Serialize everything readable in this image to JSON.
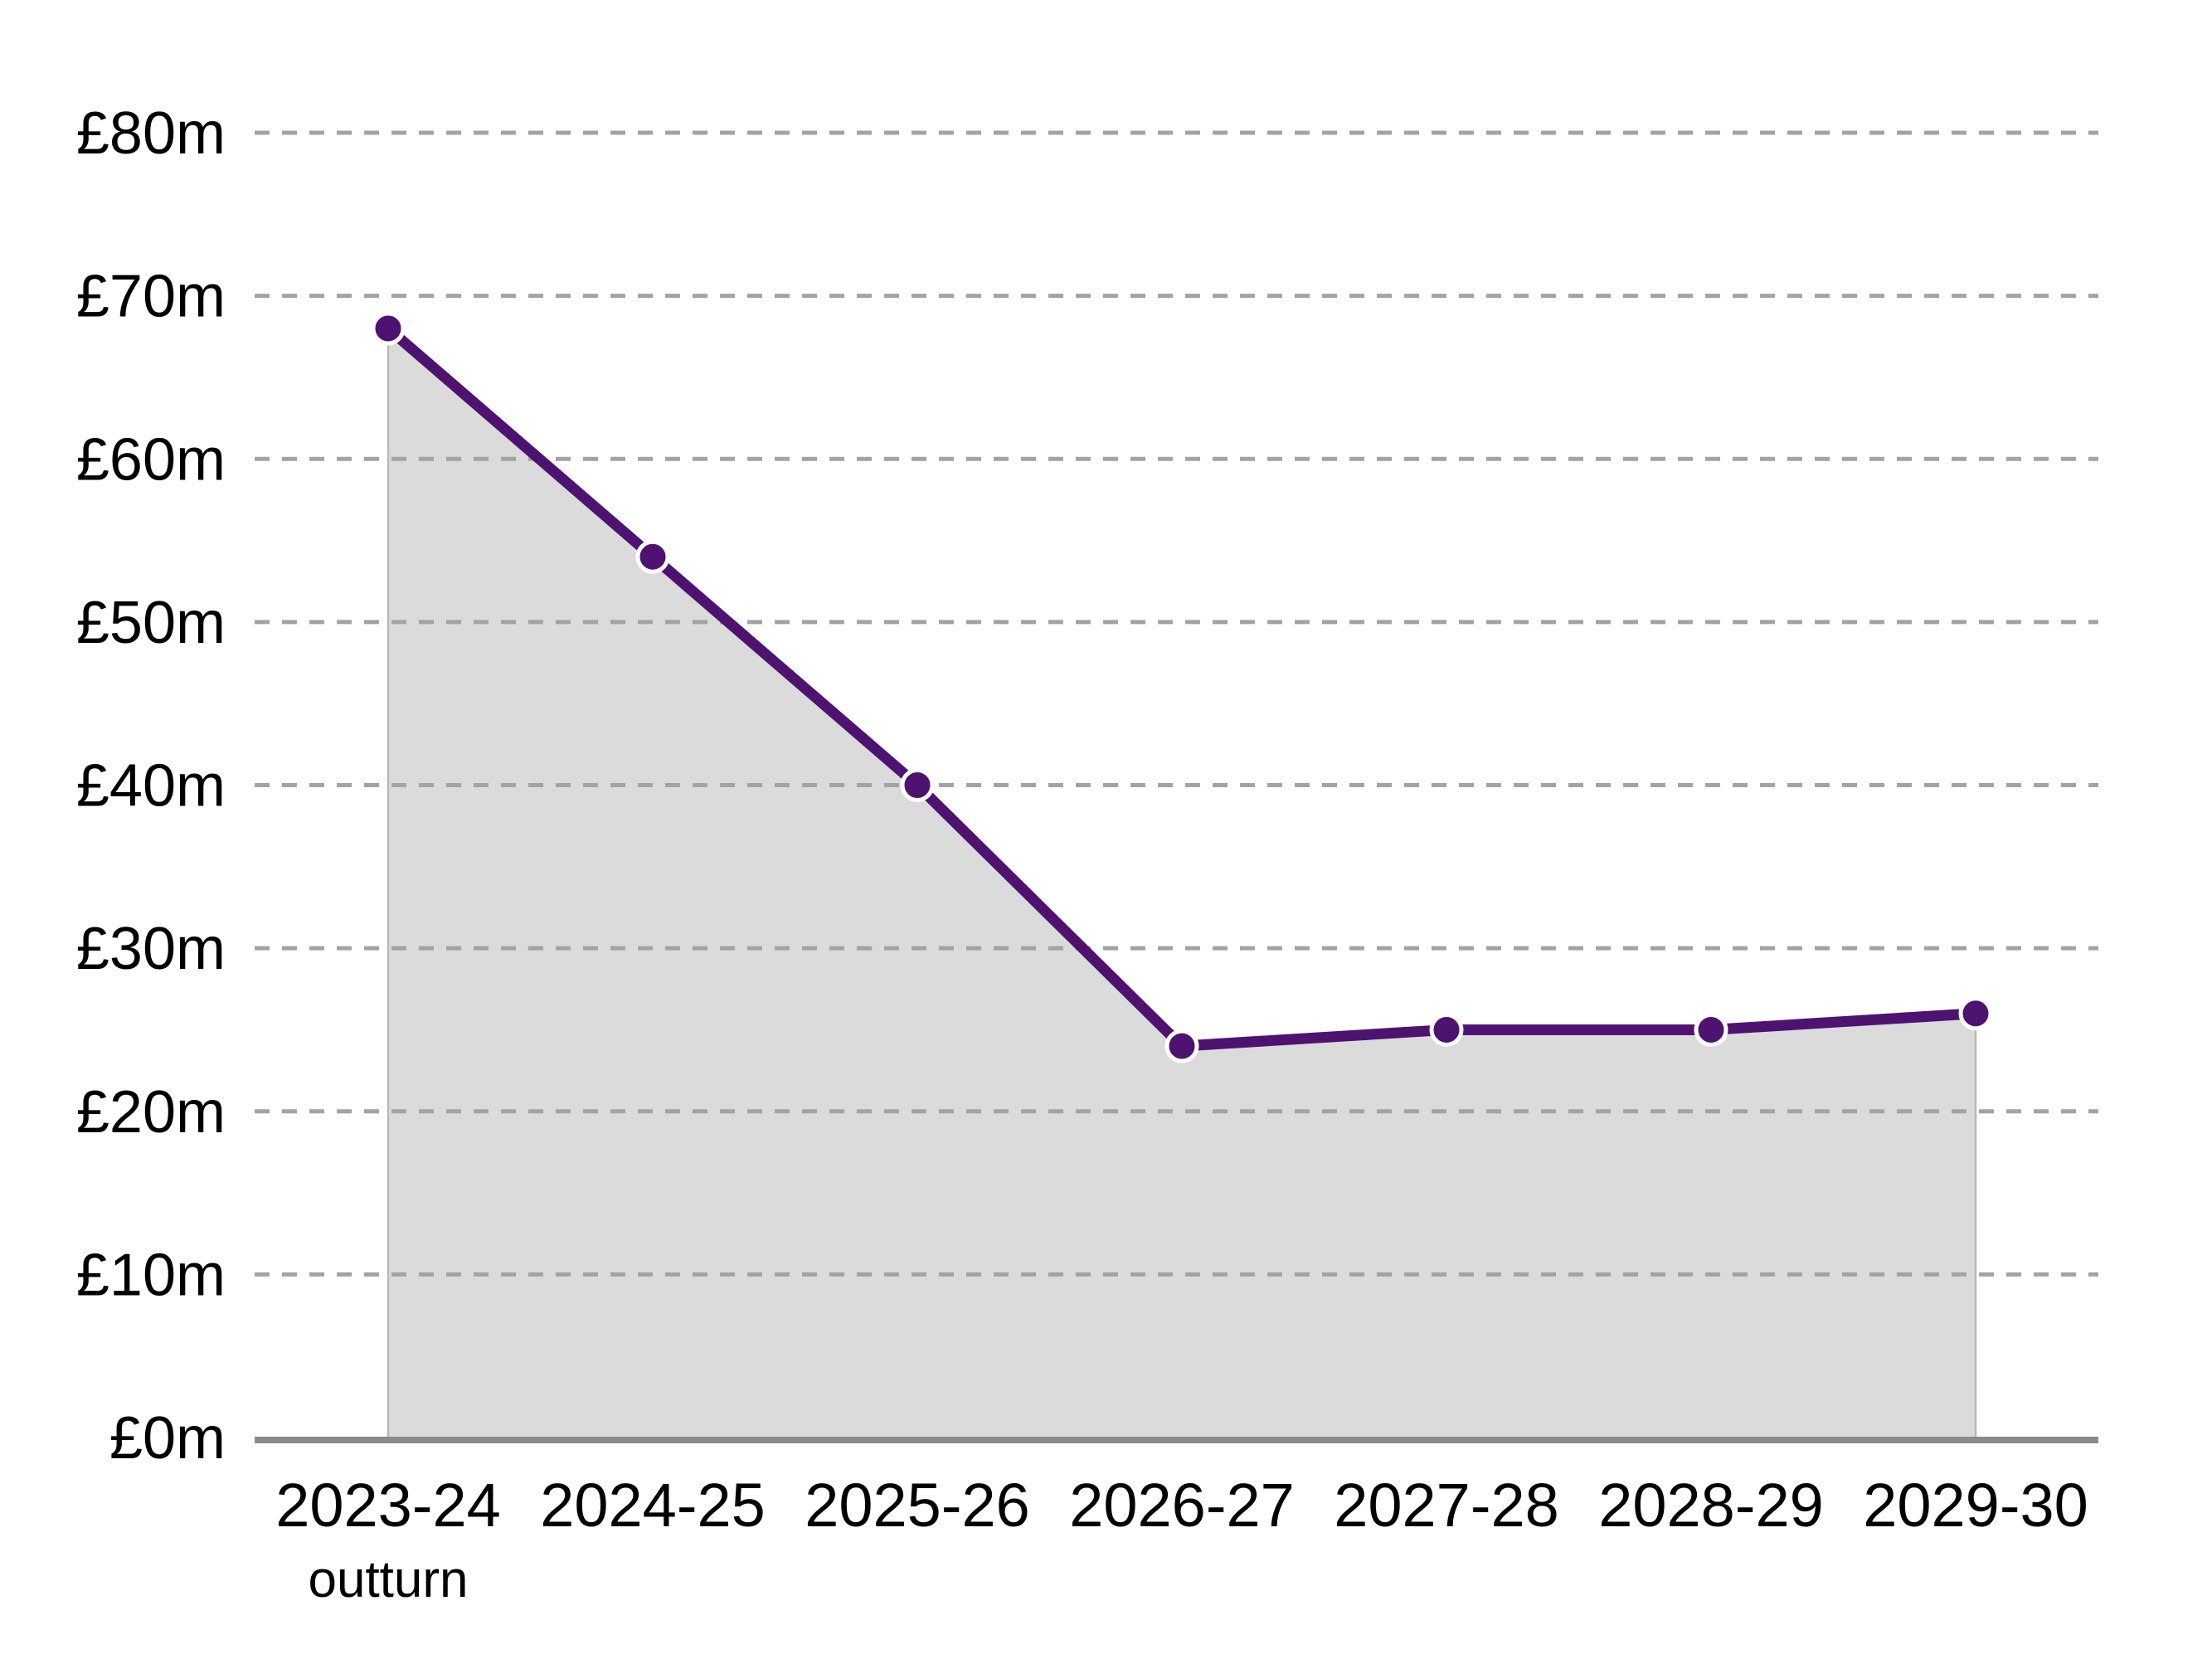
{
  "chart_data": {
    "type": "area",
    "title": "",
    "categories": [
      "2023-24",
      "2024-25",
      "2025-26",
      "2026-27",
      "2027-28",
      "2028-29",
      "2029-30"
    ],
    "category_sublabels": [
      "outturn",
      "",
      "",
      "",
      "",
      "",
      ""
    ],
    "values": [
      68,
      54,
      40,
      24,
      25,
      25,
      26
    ],
    "value_unit": "£m",
    "ytick_labels": [
      "£0m",
      "£10m",
      "£20m",
      "£30m",
      "£40m",
      "£50m",
      "£60m",
      "£70m",
      "£80m"
    ],
    "ytick_values": [
      0,
      10,
      20,
      30,
      40,
      50,
      60,
      70,
      80
    ],
    "ylim": [
      0,
      80
    ],
    "xlabel": "",
    "ylabel": "",
    "grid": "horizontal-dashed",
    "legend": "none",
    "colors": {
      "line": "#4E1271",
      "marker": "#4E1271",
      "marker_ring": "#FFFFFF",
      "area_fill": "#DBDBDB",
      "area_edge": "#B9B9B9",
      "gridline": "#A3A3A3",
      "axis": "#8A8A8A",
      "text": "#000000",
      "background": "#FFFFFF"
    }
  }
}
